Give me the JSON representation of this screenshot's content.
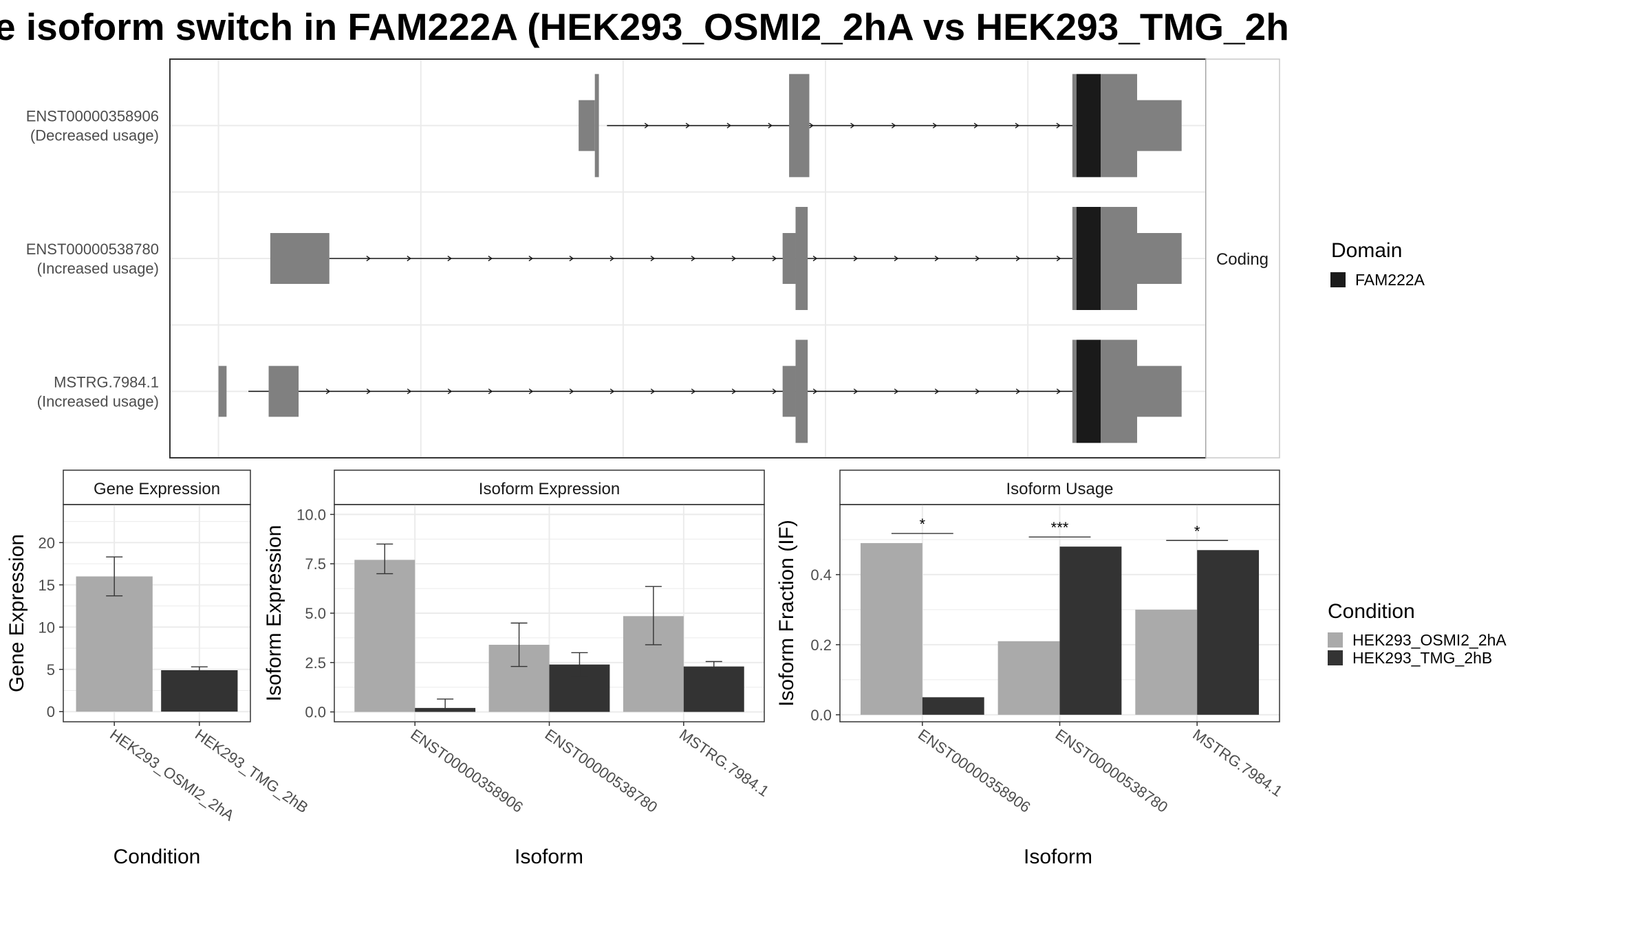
{
  "title": "e isoform switch in FAM222A (HEK293_OSMI2_2hA vs HEK293_TMG_2h",
  "colors": {
    "domain": "#1a1a1a",
    "exon": "#808080",
    "condition_a": "#aaaaaa",
    "condition_b": "#333333",
    "grid": "#ebebeb",
    "panel_border": "#333333",
    "strip_border": "#c8c8c8"
  },
  "structure": {
    "side_strip_label": "Coding",
    "isoforms": [
      {
        "id": "ENST00000358906",
        "note": "(Decreased usage)",
        "intron_span": [
          0.48,
          1.06
        ],
        "exons": [
          {
            "start": 0.445,
            "end": 0.465,
            "kind": "utr"
          },
          {
            "start": 0.465,
            "end": 0.47,
            "kind": "cds"
          },
          {
            "start": 0.705,
            "end": 0.73,
            "kind": "cds"
          },
          {
            "start": 1.055,
            "end": 1.06,
            "kind": "cds"
          },
          {
            "start": 1.06,
            "end": 1.09,
            "kind": "domain"
          },
          {
            "start": 1.09,
            "end": 1.135,
            "kind": "cds"
          },
          {
            "start": 1.135,
            "end": 1.19,
            "kind": "utr"
          }
        ]
      },
      {
        "id": "ENST00000538780",
        "note": "(Increased usage)",
        "intron_span": [
          0.137,
          1.06
        ],
        "exons": [
          {
            "start": 0.064,
            "end": 0.137,
            "kind": "utr"
          },
          {
            "start": 0.697,
            "end": 0.713,
            "kind": "utr"
          },
          {
            "start": 0.713,
            "end": 0.728,
            "kind": "cds"
          },
          {
            "start": 1.055,
            "end": 1.06,
            "kind": "cds"
          },
          {
            "start": 1.06,
            "end": 1.09,
            "kind": "domain"
          },
          {
            "start": 1.09,
            "end": 1.135,
            "kind": "cds"
          },
          {
            "start": 1.135,
            "end": 1.19,
            "kind": "utr"
          }
        ]
      },
      {
        "id": "MSTRG.7984.1",
        "note": "(Increased usage)",
        "intron_span": [
          0.037,
          1.06
        ],
        "exons": [
          {
            "start": 0.0,
            "end": 0.01,
            "kind": "utr"
          },
          {
            "start": 0.062,
            "end": 0.099,
            "kind": "utr"
          },
          {
            "start": 0.697,
            "end": 0.713,
            "kind": "utr"
          },
          {
            "start": 0.713,
            "end": 0.728,
            "kind": "cds"
          },
          {
            "start": 1.055,
            "end": 1.06,
            "kind": "cds"
          },
          {
            "start": 1.06,
            "end": 1.09,
            "kind": "domain"
          },
          {
            "start": 1.09,
            "end": 1.135,
            "kind": "cds"
          },
          {
            "start": 1.135,
            "end": 1.19,
            "kind": "utr"
          }
        ]
      }
    ]
  },
  "legends": {
    "domain": {
      "title": "Domain",
      "items": [
        "FAM222A"
      ]
    },
    "condition": {
      "title": "Condition",
      "items": [
        "HEK293_OSMI2_2hA",
        "HEK293_TMG_2hB"
      ]
    }
  },
  "chart_data": [
    {
      "type": "bar",
      "title": "Gene Expression",
      "xlabel": "Condition",
      "ylabel": "Gene Expression",
      "categories": [
        "HEK293_OSMI2_2hA",
        "HEK293_TMG_2hB"
      ],
      "values": [
        16.0,
        4.9
      ],
      "error_low": [
        13.7,
        4.6
      ],
      "error_high": [
        18.3,
        5.3
      ],
      "ylim": [
        -1.2,
        24.5
      ],
      "yticks": [
        0,
        5,
        10,
        15,
        20
      ],
      "ytick_labels": [
        "0",
        "5",
        "10",
        "15",
        "20"
      ],
      "grid": true
    },
    {
      "type": "bar",
      "title": "Isoform Expression",
      "xlabel": "Isoform",
      "ylabel": "Isoform Expression",
      "categories": [
        "ENST00000358906",
        "ENST00000538780",
        "MSTRG.7984.1"
      ],
      "series": [
        {
          "name": "HEK293_OSMI2_2hA",
          "values": [
            7.7,
            3.4,
            4.85
          ],
          "error_low": [
            7.0,
            2.3,
            3.4
          ],
          "error_high": [
            8.5,
            4.5,
            6.35
          ]
        },
        {
          "name": "HEK293_TMG_2hB",
          "values": [
            0.2,
            2.4,
            2.3
          ],
          "error_low": [
            0.05,
            1.8,
            2.1
          ],
          "error_high": [
            0.65,
            3.0,
            2.55
          ]
        }
      ],
      "ylim": [
        -0.5,
        10.5
      ],
      "yticks": [
        0,
        2.5,
        5,
        7.5,
        10
      ],
      "ytick_labels": [
        "0.0",
        "2.5",
        "5.0",
        "7.5",
        "10.0"
      ],
      "grid": true
    },
    {
      "type": "bar",
      "title": "Isoform Usage",
      "xlabel": "Isoform",
      "ylabel": "Isoform Fraction (IF)",
      "categories": [
        "ENST00000358906",
        "ENST00000538780",
        "MSTRG.7984.1"
      ],
      "series": [
        {
          "name": "HEK293_OSMI2_2hA",
          "values": [
            0.49,
            0.21,
            0.3
          ]
        },
        {
          "name": "HEK293_TMG_2hB",
          "values": [
            0.05,
            0.48,
            0.47
          ]
        }
      ],
      "significance": [
        "*",
        "***",
        "*"
      ],
      "ylim": [
        -0.02,
        0.6
      ],
      "yticks": [
        0,
        0.2,
        0.4
      ],
      "ytick_labels": [
        "0.0",
        "0.2",
        "0.4"
      ],
      "grid": true
    }
  ]
}
